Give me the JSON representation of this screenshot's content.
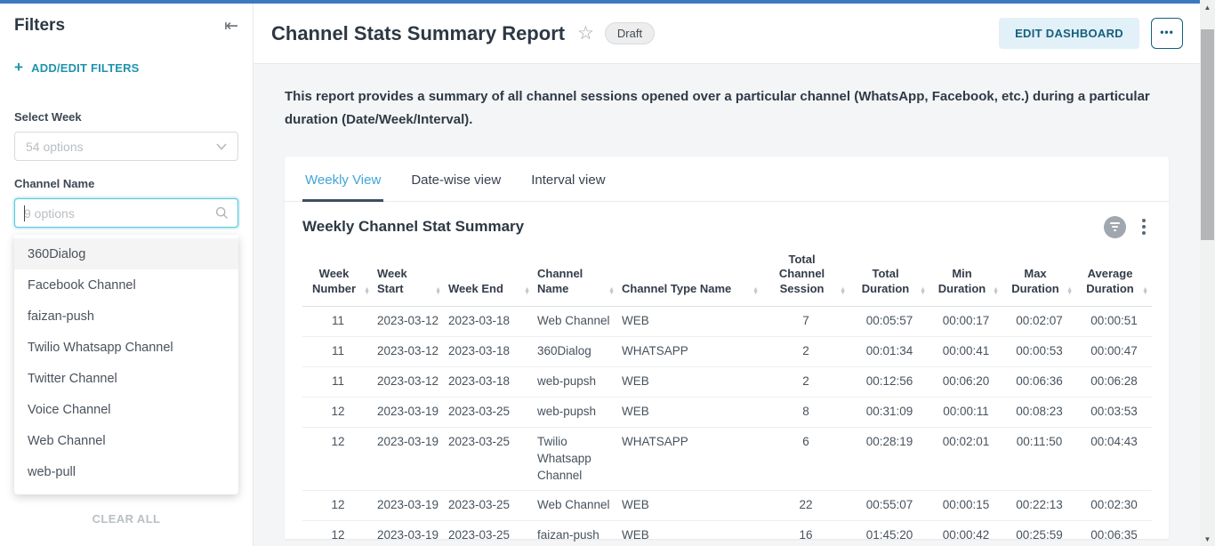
{
  "colors": {
    "top_accent_bar": "#3b7ac0",
    "sidebar_link_teal": "#1f93ad",
    "active_tab_blue": "#41a5d6",
    "active_tab_underline": "#3e4d63",
    "edit_button_bg": "#e2f0f8",
    "edit_button_text": "#15607e",
    "input_focus_border": "#56c6dc"
  },
  "icons": {
    "collapse": "⇤",
    "plus": "+",
    "star": "☆",
    "search": "magnifier",
    "chevron_down": "chevron",
    "more_dots": "•••",
    "sort_up": "▲",
    "sort_down": "▼"
  },
  "sidebar": {
    "title": "Filters",
    "add_edit_label": "ADD/EDIT FILTERS",
    "select_week": {
      "label": "Select Week",
      "placeholder": "54 options"
    },
    "channel_name": {
      "label": "Channel Name",
      "placeholder": "9 options"
    },
    "dropdown_options": [
      "360Dialog",
      "Facebook Channel",
      "faizan-push",
      "Twilio Whatsapp Channel",
      "Twitter Channel",
      "Voice Channel",
      "Web Channel",
      "web-pull"
    ],
    "clear_all_label": "CLEAR ALL"
  },
  "header": {
    "title": "Channel Stats Summary Report",
    "status_badge": "Draft",
    "edit_button": "EDIT DASHBOARD"
  },
  "main": {
    "description": "This report provides a summary of all channel sessions opened over a particular channel (WhatsApp, Facebook, etc.) during a particular duration (Date/Week/Interval).",
    "tabs": [
      {
        "label": "Weekly View",
        "active": true
      },
      {
        "label": "Date-wise view",
        "active": false
      },
      {
        "label": "Interval view",
        "active": false
      }
    ],
    "table": {
      "title": "Weekly Channel Stat Summary",
      "columns": [
        "Week Number",
        "Week Start",
        "Week End",
        "Channel Name",
        "Channel Type Name",
        "Total Channel Session",
        "Total Duration",
        "Min Duration",
        "Max Duration",
        "Average Duration"
      ],
      "rows": [
        [
          "11",
          "2023-03-12",
          "2023-03-18",
          "Web Channel",
          "WEB",
          "7",
          "00:05:57",
          "00:00:17",
          "00:02:07",
          "00:00:51"
        ],
        [
          "11",
          "2023-03-12",
          "2023-03-18",
          "360Dialog",
          "WHATSAPP",
          "2",
          "00:01:34",
          "00:00:41",
          "00:00:53",
          "00:00:47"
        ],
        [
          "11",
          "2023-03-12",
          "2023-03-18",
          "web-pupsh",
          "WEB",
          "2",
          "00:12:56",
          "00:06:20",
          "00:06:36",
          "00:06:28"
        ],
        [
          "12",
          "2023-03-19",
          "2023-03-25",
          "web-pupsh",
          "WEB",
          "8",
          "00:31:09",
          "00:00:11",
          "00:08:23",
          "00:03:53"
        ],
        [
          "12",
          "2023-03-19",
          "2023-03-25",
          "Twilio Whatsapp Channel",
          "WHATSAPP",
          "6",
          "00:28:19",
          "00:02:01",
          "00:11:50",
          "00:04:43"
        ],
        [
          "12",
          "2023-03-19",
          "2023-03-25",
          "Web Channel",
          "WEB",
          "22",
          "00:55:07",
          "00:00:15",
          "00:22:13",
          "00:02:30"
        ],
        [
          "12",
          "2023-03-19",
          "2023-03-25",
          "faizan-push",
          "WEB",
          "16",
          "01:45:20",
          "00:00:42",
          "00:25:59",
          "00:06:35"
        ]
      ]
    }
  }
}
